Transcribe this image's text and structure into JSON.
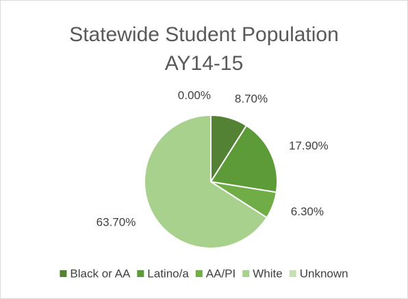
{
  "chart_data": {
    "type": "pie",
    "title": "Statewide Student Population AY14-15",
    "categories": [
      "Black or AA",
      "Latino/a",
      "AA/PI",
      "White",
      "Unknown"
    ],
    "values": [
      8.7,
      17.9,
      6.3,
      63.7,
      0.0
    ],
    "value_labels": [
      "8.70%",
      "17.90%",
      "6.30%",
      "63.70%",
      "0.00%"
    ],
    "colors": [
      "#548235",
      "#5d9b38",
      "#70ad47",
      "#a9d18e",
      "#c5e0b4"
    ],
    "legend": "bottom"
  }
}
